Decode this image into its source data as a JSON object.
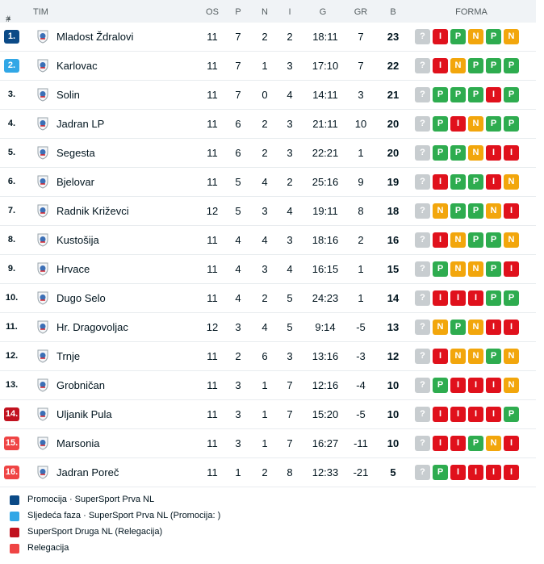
{
  "header": {
    "rank": "#",
    "sort_arrow": "▲",
    "team": "TIM",
    "played": "OS",
    "won": "P",
    "draw": "N",
    "lost": "I",
    "goals": "G",
    "goal_diff": "GR",
    "points": "B",
    "form": "FORMA"
  },
  "colors": {
    "promotion": "#0b4a87",
    "next_phase": "#31a7e6",
    "relegation_second": "#c1121f",
    "relegation": "#ef4444",
    "win": "#2eac4f",
    "draw": "#f2a60c",
    "loss": "#e0111c",
    "next": "#c8cdd0"
  },
  "rows": [
    {
      "rank": "1.",
      "zone": "promotion",
      "team": "Mladost Ždralovi",
      "logo": "red-white-crest-icon",
      "played": "11",
      "won": "7",
      "draw": "2",
      "lost": "2",
      "goals": "18:11",
      "gd": "7",
      "pts": "23",
      "form": [
        "?",
        "I",
        "P",
        "N",
        "P",
        "N"
      ]
    },
    {
      "rank": "2.",
      "zone": "next_phase",
      "team": "Karlovac",
      "logo": "blue-white-crest-icon",
      "played": "11",
      "won": "7",
      "draw": "1",
      "lost": "3",
      "goals": "17:10",
      "gd": "7",
      "pts": "22",
      "form": [
        "?",
        "I",
        "N",
        "P",
        "P",
        "P"
      ]
    },
    {
      "rank": "3.",
      "zone": "",
      "team": "Solin",
      "logo": "blue-white-red-crest-icon",
      "played": "11",
      "won": "7",
      "draw": "0",
      "lost": "4",
      "goals": "14:11",
      "gd": "3",
      "pts": "21",
      "form": [
        "?",
        "P",
        "P",
        "P",
        "I",
        "P"
      ]
    },
    {
      "rank": "4.",
      "zone": "",
      "team": "Jadran LP",
      "logo": "blue-shield-crest-icon",
      "played": "11",
      "won": "6",
      "draw": "2",
      "lost": "3",
      "goals": "21:11",
      "gd": "10",
      "pts": "20",
      "form": [
        "?",
        "P",
        "I",
        "N",
        "P",
        "P"
      ]
    },
    {
      "rank": "5.",
      "zone": "",
      "team": "Segesta",
      "logo": "orange-green-crest-icon",
      "played": "11",
      "won": "6",
      "draw": "2",
      "lost": "3",
      "goals": "22:21",
      "gd": "1",
      "pts": "20",
      "form": [
        "?",
        "P",
        "P",
        "N",
        "I",
        "I"
      ]
    },
    {
      "rank": "6.",
      "zone": "",
      "team": "Bjelovar",
      "logo": "red-shield-crest-icon",
      "played": "11",
      "won": "5",
      "draw": "4",
      "lost": "2",
      "goals": "25:16",
      "gd": "9",
      "pts": "19",
      "form": [
        "?",
        "I",
        "P",
        "P",
        "I",
        "N"
      ]
    },
    {
      "rank": "7.",
      "zone": "",
      "team": "Radnik Križevci",
      "logo": "blue-round-crest-icon",
      "played": "12",
      "won": "5",
      "draw": "3",
      "lost": "4",
      "goals": "19:11",
      "gd": "8",
      "pts": "18",
      "form": [
        "?",
        "N",
        "P",
        "P",
        "N",
        "I"
      ]
    },
    {
      "rank": "8.",
      "zone": "",
      "team": "Kustošija",
      "logo": "blue-round-crest-icon",
      "played": "11",
      "won": "4",
      "draw": "4",
      "lost": "3",
      "goals": "18:16",
      "gd": "2",
      "pts": "16",
      "form": [
        "?",
        "I",
        "N",
        "P",
        "P",
        "N"
      ]
    },
    {
      "rank": "9.",
      "zone": "",
      "team": "Hrvace",
      "logo": "red-blue-crest-icon",
      "played": "11",
      "won": "4",
      "draw": "3",
      "lost": "4",
      "goals": "16:15",
      "gd": "1",
      "pts": "15",
      "form": [
        "?",
        "P",
        "N",
        "N",
        "P",
        "I"
      ]
    },
    {
      "rank": "10.",
      "zone": "",
      "team": "Dugo Selo",
      "logo": "blue-round-crest-icon",
      "played": "11",
      "won": "4",
      "draw": "2",
      "lost": "5",
      "goals": "24:23",
      "gd": "1",
      "pts": "14",
      "form": [
        "?",
        "I",
        "I",
        "I",
        "P",
        "P"
      ]
    },
    {
      "rank": "11.",
      "zone": "",
      "team": "Hr. Dragovoljac",
      "logo": "checkered-crest-icon",
      "played": "12",
      "won": "3",
      "draw": "4",
      "lost": "5",
      "goals": "9:14",
      "gd": "-5",
      "pts": "13",
      "form": [
        "?",
        "N",
        "P",
        "N",
        "I",
        "I"
      ]
    },
    {
      "rank": "12.",
      "zone": "",
      "team": "Trnje",
      "logo": "blue-white-red-crest-icon",
      "played": "11",
      "won": "2",
      "draw": "6",
      "lost": "3",
      "goals": "13:16",
      "gd": "-3",
      "pts": "12",
      "form": [
        "?",
        "I",
        "N",
        "N",
        "P",
        "N"
      ]
    },
    {
      "rank": "13.",
      "zone": "",
      "team": "Grobničan",
      "logo": "red-shield-crest-icon",
      "played": "11",
      "won": "3",
      "draw": "1",
      "lost": "7",
      "goals": "12:16",
      "gd": "-4",
      "pts": "10",
      "form": [
        "?",
        "P",
        "I",
        "I",
        "I",
        "N"
      ]
    },
    {
      "rank": "14.",
      "zone": "relegation_second",
      "team": "Uljanik Pula",
      "logo": "blue-red-round-crest-icon",
      "played": "11",
      "won": "3",
      "draw": "1",
      "lost": "7",
      "goals": "15:20",
      "gd": "-5",
      "pts": "10",
      "form": [
        "?",
        "I",
        "I",
        "I",
        "I",
        "P"
      ]
    },
    {
      "rank": "15.",
      "zone": "relegation",
      "team": "Marsonia",
      "logo": "blue-white-crest-icon",
      "played": "11",
      "won": "3",
      "draw": "1",
      "lost": "7",
      "goals": "16:27",
      "gd": "-11",
      "pts": "10",
      "form": [
        "?",
        "I",
        "I",
        "P",
        "N",
        "I"
      ]
    },
    {
      "rank": "16.",
      "zone": "relegation",
      "team": "Jadran Poreč",
      "logo": "light-blue-crest-icon",
      "played": "11",
      "won": "1",
      "draw": "2",
      "lost": "8",
      "goals": "12:33",
      "gd": "-21",
      "pts": "5",
      "form": [
        "?",
        "P",
        "I",
        "I",
        "I",
        "I"
      ]
    }
  ],
  "legend": [
    {
      "zone": "promotion",
      "label": "Promocija · SuperSport Prva NL"
    },
    {
      "zone": "next_phase",
      "label": "Sljedeća faza · SuperSport Prva NL (Promocija: )"
    },
    {
      "zone": "relegation_second",
      "label": "SuperSport Druga NL (Relegacija)"
    },
    {
      "zone": "relegation",
      "label": "Relegacija"
    }
  ]
}
